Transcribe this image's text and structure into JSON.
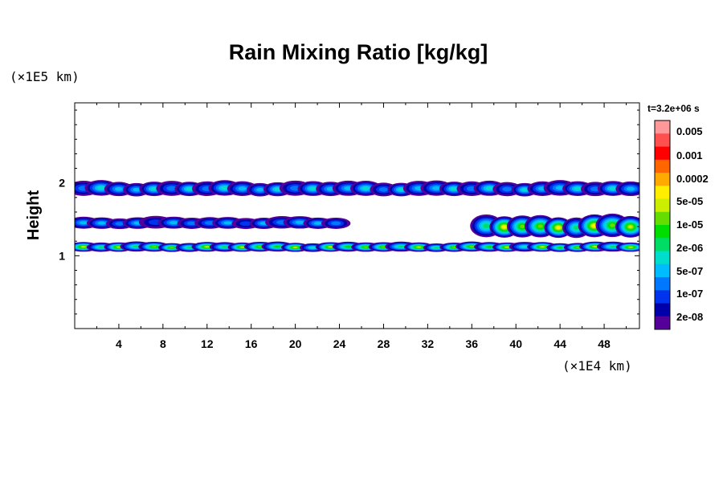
{
  "chart_data": {
    "type": "heatmap",
    "title": "Rain Mixing Ratio [kg/kg]",
    "xlabel": "",
    "ylabel": "Height",
    "x_unit": "(×1E4 km)",
    "y_unit": "(×1E5 km)",
    "time_label": "t=3.2e+06 s",
    "xlim": [
      0,
      51.2
    ],
    "ylim": [
      0,
      3.1
    ],
    "xticks": [
      4,
      8,
      12,
      16,
      20,
      24,
      28,
      32,
      36,
      40,
      44,
      48
    ],
    "yticks": [
      1,
      2
    ],
    "grid": false,
    "colorbar": {
      "placement": "right",
      "labels": [
        "0.005",
        "0.001",
        "0.0002",
        "5e-05",
        "1e-05",
        "2e-06",
        "5e-07",
        "1e-07",
        "2e-08"
      ],
      "colors_top_to_bottom": [
        "#ff9999",
        "#ff5050",
        "#ff0000",
        "#ff6600",
        "#ffaa00",
        "#ffee00",
        "#ccee00",
        "#66dd00",
        "#00dd00",
        "#00dd66",
        "#00ddcc",
        "#00bbff",
        "#0077ff",
        "#0033ee",
        "#0000aa",
        "#550099"
      ]
    },
    "bands": [
      {
        "y": 1.92,
        "thickness": 0.2,
        "x_start": 0,
        "x_end": 51.2,
        "peak_level": 5
      },
      {
        "y": 1.45,
        "thickness": 0.16,
        "x_start": 0,
        "x_end": 24.5,
        "peak_level": 4
      },
      {
        "y": 1.12,
        "thickness": 0.13,
        "x_start": 0,
        "x_end": 51.2,
        "peak_level": 9
      },
      {
        "y": 1.4,
        "thickness": 0.3,
        "x_start": 36.5,
        "x_end": 51.2,
        "peak_level": 10
      }
    ]
  }
}
